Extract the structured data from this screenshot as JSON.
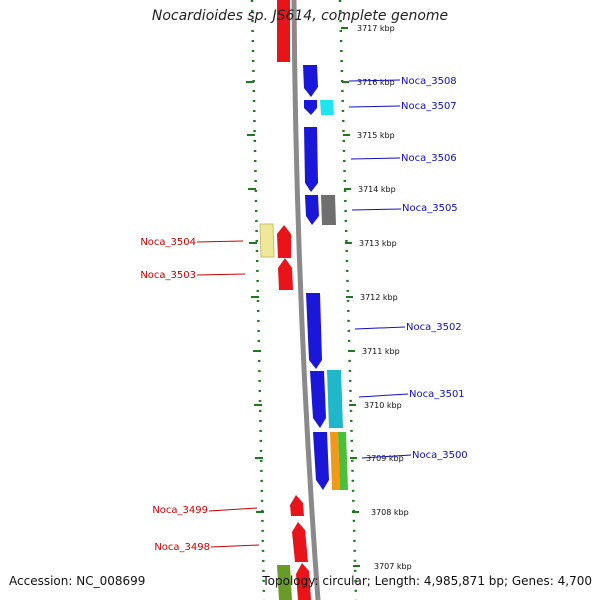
{
  "title": "Nocardioides sp. JS614, complete genome",
  "footer": {
    "accession": "Accession: NC_008699",
    "summary": "Topology: circular; Length: 4,985,871 bp; Genes: 4,700"
  },
  "colors": {
    "backbone": "#8a8a8a",
    "ticks": "#1e7a1e",
    "left_gene": "#e8141a",
    "right_gene": "#1b17d8",
    "left_label": "#cc0000",
    "right_label": "#1010c0"
  },
  "kbp_labels": [
    "3717 kbp",
    "3716 kbp",
    "3715 kbp",
    "3714 kbp",
    "3713 kbp",
    "3712 kbp",
    "3711 kbp",
    "3710 kbp",
    "3709 kbp",
    "3708 kbp",
    "3707 kbp"
  ],
  "genes": {
    "right": [
      "Noca_3508",
      "Noca_3507",
      "Noca_3506",
      "Noca_3505",
      "Noca_3502",
      "Noca_3501",
      "Noca_3500"
    ],
    "left": [
      "Noca_3504",
      "Noca_3503",
      "Noca_3499",
      "Noca_3498"
    ]
  }
}
